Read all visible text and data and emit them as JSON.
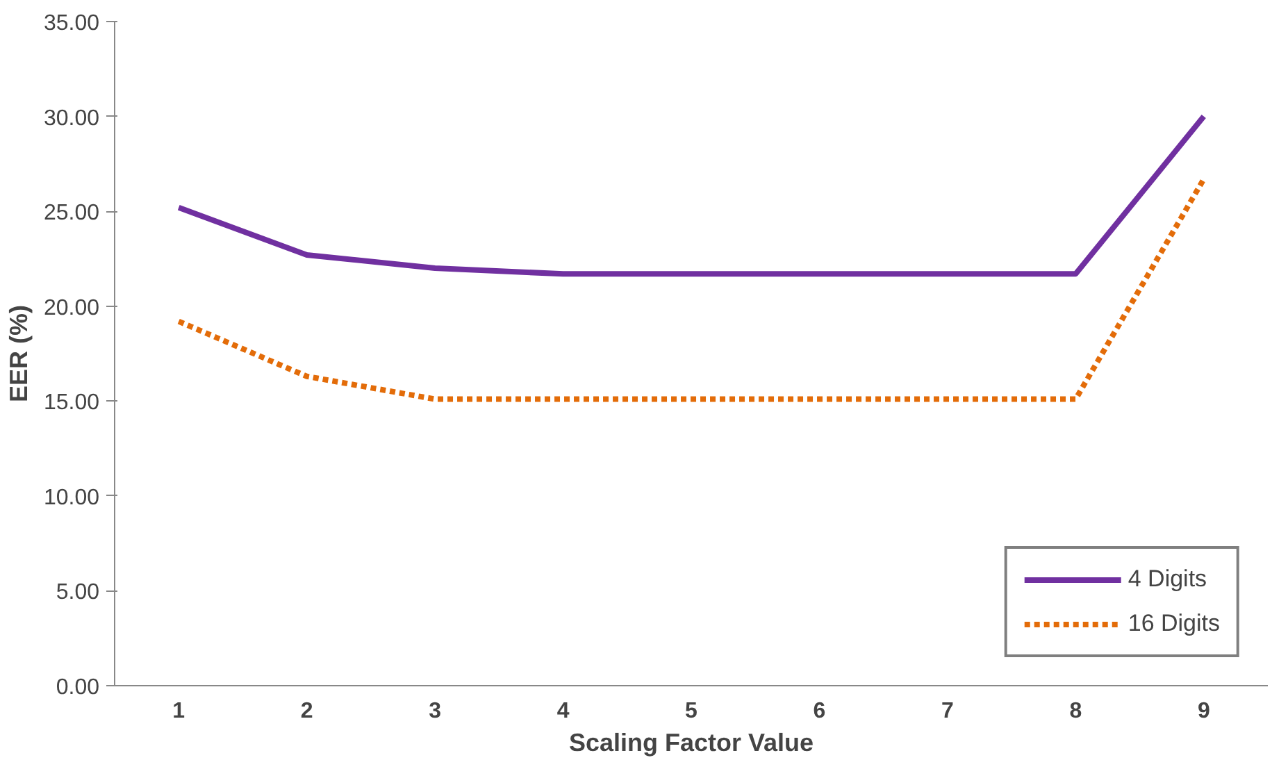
{
  "chart_data": {
    "type": "line",
    "xlabel": "Scaling Factor Value",
    "ylabel": "EER (%)",
    "categories": [
      "1",
      "2",
      "3",
      "4",
      "5",
      "6",
      "7",
      "8",
      "9"
    ],
    "ylim": [
      0,
      35
    ],
    "yticks": [
      {
        "value": 0,
        "label": "0.00"
      },
      {
        "value": 5,
        "label": "5.00"
      },
      {
        "value": 10,
        "label": "10.00"
      },
      {
        "value": 15,
        "label": "15.00"
      },
      {
        "value": 20,
        "label": "20.00"
      },
      {
        "value": 25,
        "label": "25.00"
      },
      {
        "value": 30,
        "label": "30.00"
      },
      {
        "value": 35,
        "label": "35.00"
      }
    ],
    "grid": false,
    "legend": "bottom right",
    "series": [
      {
        "name": "4 Digits",
        "color": "#7030a0",
        "line_style": "solid",
        "values": [
          25.2,
          22.7,
          22.0,
          21.7,
          21.7,
          21.7,
          21.7,
          21.7,
          30.0
        ]
      },
      {
        "name": "16 Digits",
        "color": "#e36c09",
        "line_style": "dashed",
        "values": [
          19.2,
          16.3,
          15.1,
          15.1,
          15.1,
          15.1,
          15.1,
          15.1,
          26.7
        ]
      }
    ]
  }
}
